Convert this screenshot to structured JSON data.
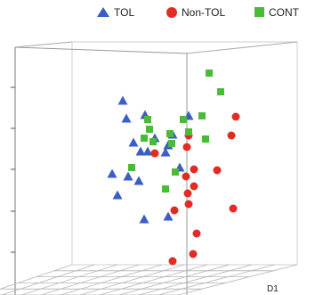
{
  "chart_data": {
    "type": "scatter",
    "title": "",
    "legend_position": "top",
    "axis_labels": {
      "d1": "D1"
    },
    "series": [
      {
        "name": "TOL",
        "marker": "triangle",
        "color": "#3a5ec4",
        "points": [
          [
            138,
            113
          ],
          [
            142,
            133
          ],
          [
            163,
            129
          ],
          [
            212,
            130
          ],
          [
            150,
            160
          ],
          [
            158,
            170
          ],
          [
            166,
            170
          ],
          [
            174,
            155
          ],
          [
            186,
            171
          ],
          [
            189,
            163
          ],
          [
            194,
            151
          ],
          [
            126,
            195
          ],
          [
            144,
            198
          ],
          [
            156,
            203
          ],
          [
            132,
            219
          ],
          [
            162,
            246
          ],
          [
            189,
            243
          ],
          [
            202,
            188
          ]
        ]
      },
      {
        "name": "Non-TOL",
        "color": "#e32b24",
        "marker": "circle",
        "points": [
          [
            265,
            131
          ],
          [
            260,
            152
          ],
          [
            212,
            152
          ],
          [
            210,
            165
          ],
          [
            218,
            190
          ],
          [
            244,
            191
          ],
          [
            174,
            172
          ],
          [
            209,
            198
          ],
          [
            218,
            209
          ],
          [
            211,
            217
          ],
          [
            212,
            229
          ],
          [
            196,
            236
          ],
          [
            262,
            234
          ],
          [
            221,
            262
          ],
          [
            217,
            285
          ],
          [
            194,
            293
          ]
        ]
      },
      {
        "name": "CONT",
        "color": "#4cba39",
        "marker": "square",
        "points": [
          [
            235,
            82
          ],
          [
            248,
            103
          ],
          [
            227,
            130
          ],
          [
            206,
            134
          ],
          [
            166,
            134
          ],
          [
            168,
            145
          ],
          [
            162,
            155
          ],
          [
            191,
            150
          ],
          [
            193,
            161
          ],
          [
            212,
            148
          ],
          [
            231,
            156
          ],
          [
            172,
            159
          ],
          [
            148,
            188
          ],
          [
            197,
            193
          ],
          [
            186,
            212
          ]
        ]
      }
    ]
  }
}
